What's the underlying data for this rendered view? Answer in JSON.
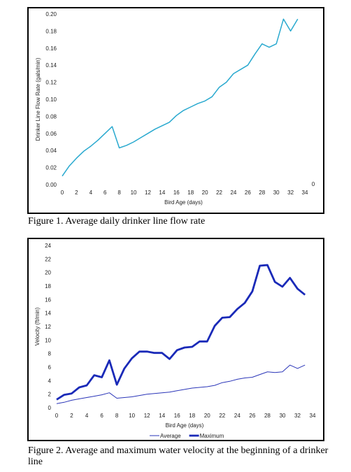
{
  "figure1": {
    "caption": "Figure 1.  Average daily drinker line flow rate",
    "chart_data": {
      "type": "line",
      "title": "",
      "xlabel": "Bird Age (days)",
      "ylabel": "Drinker Line Flow Rate (gals/min)",
      "xlim": [
        0,
        34
      ],
      "ylim": [
        0,
        0.2
      ],
      "x_ticks": [
        "0",
        "2",
        "4",
        "6",
        "8",
        "10",
        "12",
        "14",
        "16",
        "18",
        "20",
        "22",
        "24",
        "26",
        "28",
        "30",
        "32",
        "34"
      ],
      "y_ticks": [
        "0.00",
        "0.02",
        "0.04",
        "0.06",
        "0.08",
        "0.10",
        "0.12",
        "0.14",
        "0.16",
        "0.18",
        "0.20"
      ],
      "extra_tick": "0",
      "grid": false,
      "series": [
        {
          "color": "#29a9cf",
          "x": [
            0,
            1,
            2,
            3,
            4,
            5,
            6,
            7,
            8,
            9,
            10,
            11,
            12,
            13,
            14,
            15,
            16,
            17,
            18,
            19,
            20,
            21,
            22,
            23,
            24,
            25,
            26,
            27,
            28,
            29,
            30,
            31,
            32,
            33
          ],
          "values": [
            0.01,
            0.022,
            0.031,
            0.039,
            0.045,
            0.052,
            0.06,
            0.068,
            0.043,
            0.046,
            0.05,
            0.055,
            0.06,
            0.065,
            0.069,
            0.073,
            0.081,
            0.087,
            0.091,
            0.095,
            0.098,
            0.103,
            0.114,
            0.12,
            0.13,
            0.135,
            0.14,
            0.153,
            0.165,
            0.161,
            0.165,
            0.194,
            0.18,
            0.194
          ]
        }
      ]
    }
  },
  "figure2": {
    "caption": "Figure 2.  Average and maximum water velocity at the beginning of a drinker line",
    "chart_data": {
      "type": "line",
      "title": "",
      "xlabel": "Bird Age (days)",
      "ylabel": "Velocity (ft/min)",
      "xlim": [
        0,
        34
      ],
      "ylim": [
        0,
        24
      ],
      "x_ticks": [
        "0",
        "2",
        "4",
        "6",
        "8",
        "10",
        "12",
        "14",
        "16",
        "18",
        "20",
        "22",
        "24",
        "26",
        "28",
        "30",
        "32",
        "34"
      ],
      "y_ticks": [
        "0",
        "2",
        "4",
        "6",
        "8",
        "10",
        "12",
        "14",
        "16",
        "18",
        "20",
        "22",
        "24"
      ],
      "grid": false,
      "legend_position": "bottom",
      "series": [
        {
          "name": "Average",
          "color": "#2a35b8",
          "x": [
            0,
            1,
            2,
            3,
            4,
            5,
            6,
            7,
            8,
            9,
            10,
            11,
            12,
            13,
            14,
            15,
            16,
            17,
            18,
            19,
            20,
            21,
            22,
            23,
            24,
            25,
            26,
            27,
            28,
            29,
            30,
            31,
            32,
            33
          ],
          "values": [
            0.6,
            0.8,
            1.1,
            1.3,
            1.5,
            1.7,
            1.9,
            2.2,
            1.4,
            1.5,
            1.6,
            1.8,
            2.0,
            2.1,
            2.2,
            2.3,
            2.5,
            2.7,
            2.9,
            3.0,
            3.1,
            3.3,
            3.7,
            3.9,
            4.2,
            4.4,
            4.5,
            4.9,
            5.3,
            5.2,
            5.3,
            6.3,
            5.8,
            6.3
          ]
        },
        {
          "name": "Maximum",
          "color": "#1a2ab8",
          "x": [
            0,
            1,
            2,
            3,
            4,
            5,
            6,
            7,
            8,
            9,
            10,
            11,
            12,
            13,
            14,
            15,
            16,
            17,
            18,
            19,
            20,
            21,
            22,
            23,
            24,
            25,
            26,
            27,
            28,
            29,
            30,
            31,
            32,
            33
          ],
          "values": [
            1.2,
            1.9,
            2.1,
            3.0,
            3.3,
            4.8,
            4.5,
            7.0,
            3.4,
            5.8,
            7.3,
            8.3,
            8.3,
            8.1,
            8.1,
            7.2,
            8.5,
            8.9,
            9.0,
            9.8,
            9.8,
            12.1,
            13.3,
            13.4,
            14.6,
            15.5,
            17.2,
            21.0,
            21.1,
            18.6,
            17.9,
            19.2,
            17.6,
            16.7
          ]
        }
      ]
    }
  }
}
